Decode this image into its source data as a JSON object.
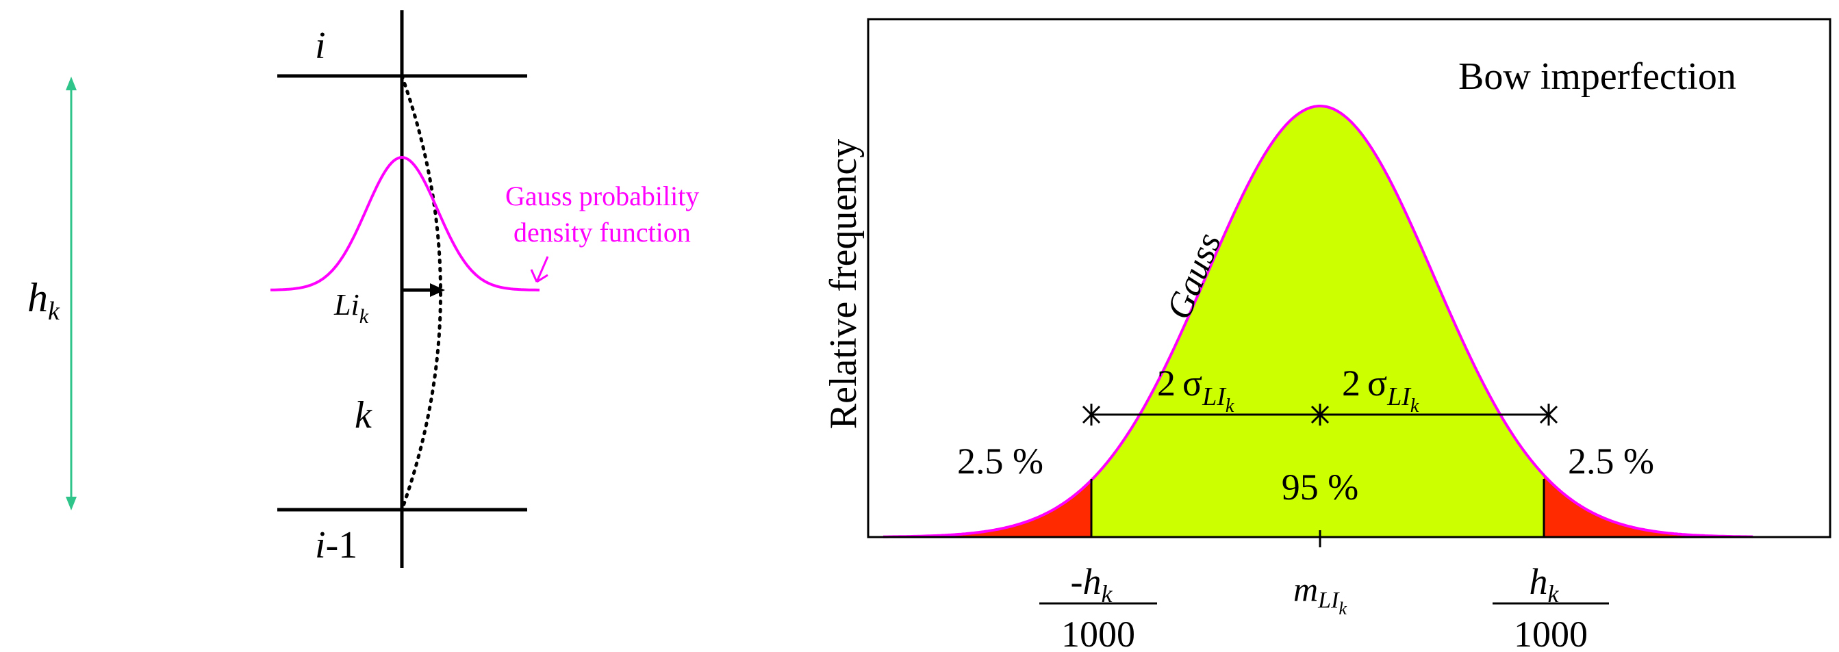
{
  "colors": {
    "magenta": "#ff00ff",
    "green_arrow": "#2fc48a",
    "lime_fill": "#ccff00",
    "red_tail": "#ff2a00",
    "black": "#000000"
  },
  "left_panel": {
    "height_label_main": "h",
    "height_label_sub": "k",
    "top_level_label": "i",
    "bottom_level_label_main": "i",
    "bottom_level_label_rest": "-1",
    "member_label": "k",
    "imperfection_label_main": "Li",
    "imperfection_label_sub": "k",
    "gauss_note_line1": "Gauss probability",
    "gauss_note_line2": "density function"
  },
  "right_panel": {
    "title": "Bow imperfection",
    "ylabel": "Relative frequency",
    "curve_label": "Gauss",
    "sigma_left": {
      "coef": "2",
      "sym": "σ",
      "sub_main": "LI",
      "sub_sub": "k"
    },
    "sigma_right": {
      "coef": "2",
      "sym": "σ",
      "sub_main": "LI",
      "sub_sub": "k"
    },
    "tail_left_pct": "2.5 %",
    "tail_right_pct": "2.5 %",
    "center_pct": "95 %",
    "tick_left": {
      "num": "-h",
      "num_sub": "k",
      "den": "1000"
    },
    "tick_mid": {
      "main": "m",
      "sub_main": "LI",
      "sub_sub": "k"
    },
    "tick_right": {
      "num": "h",
      "num_sub": "k",
      "den": "1000"
    }
  }
}
